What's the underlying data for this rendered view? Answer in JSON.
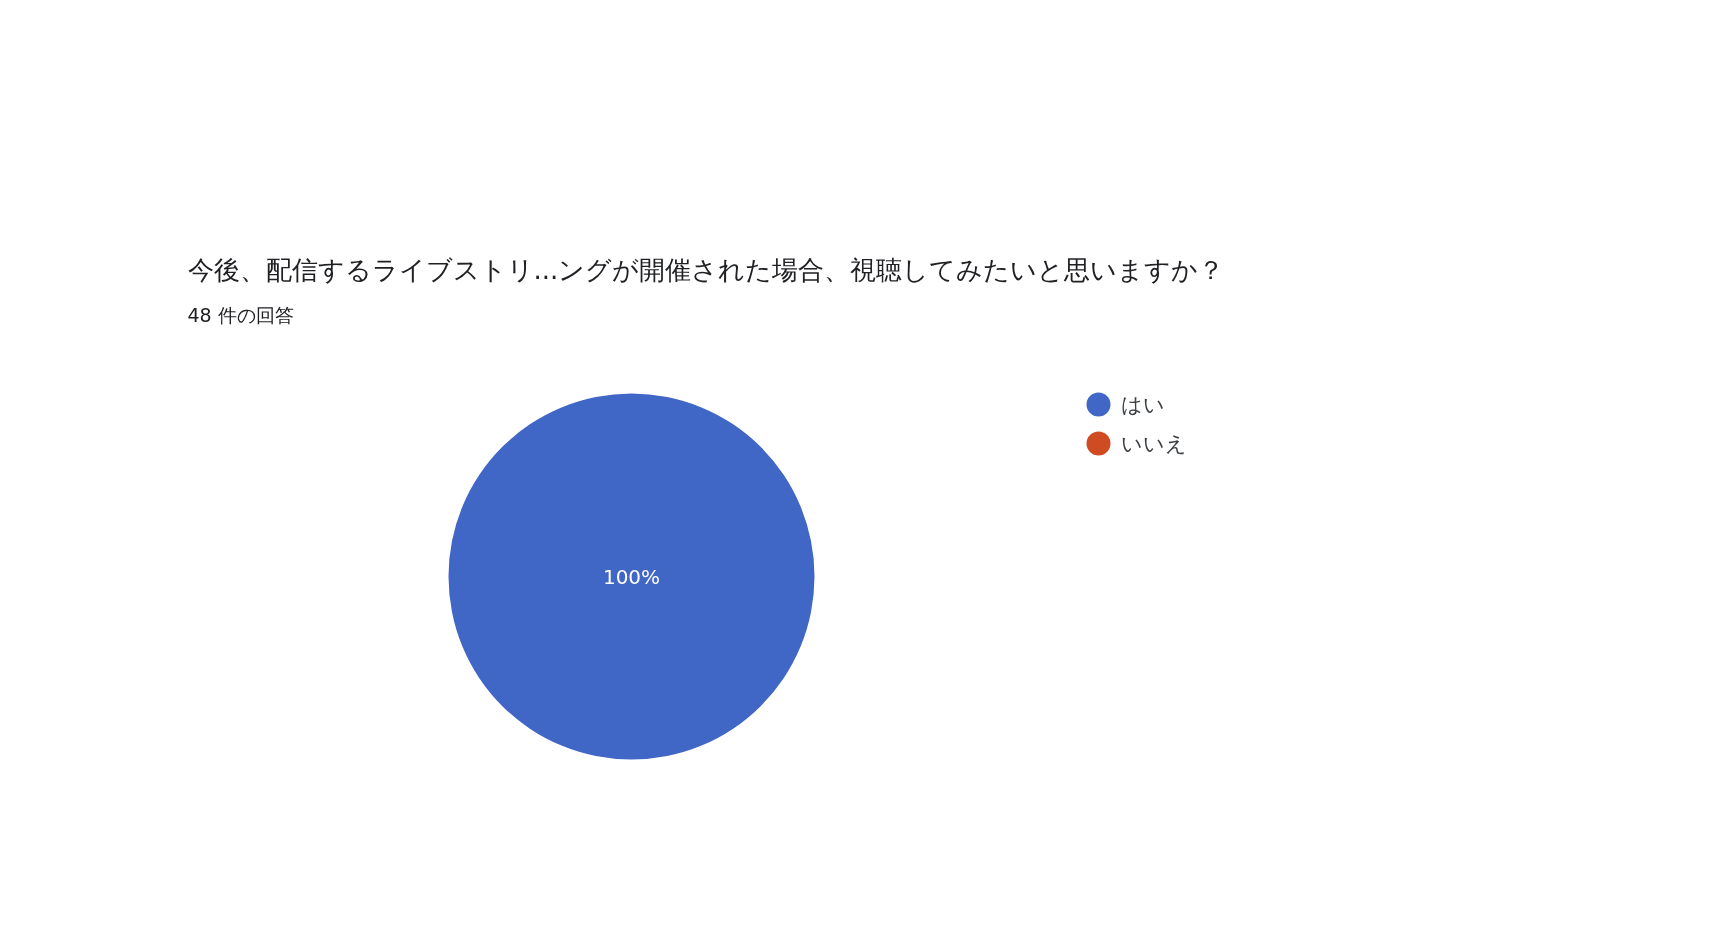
{
  "chart_data": {
    "type": "pie",
    "title": "今後、配信するライブストリ...ングが開催された場合、視聴してみたいと思いますか？",
    "subtitle": "48 件の回答",
    "categories": [
      "はい",
      "いいえ"
    ],
    "values": [
      100,
      0
    ],
    "colors": [
      "#4066c6",
      "#cf4b22"
    ],
    "value_labels": [
      "100%",
      null
    ],
    "legend": "right"
  }
}
